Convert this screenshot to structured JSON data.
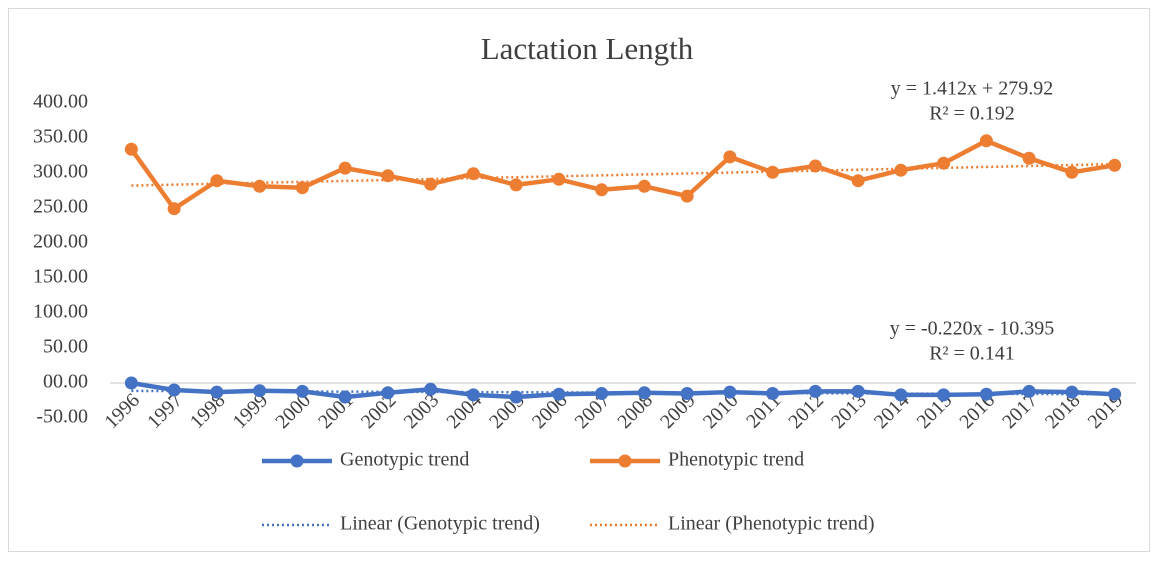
{
  "chart_data": {
    "type": "line",
    "title": "Lactation Length",
    "categories": [
      "1996",
      "1997",
      "1998",
      "1999",
      "2000",
      "2001",
      "2002",
      "2003",
      "2004",
      "2005",
      "2006",
      "2007",
      "2008",
      "2009",
      "2010",
      "2011",
      "2012",
      "2013",
      "2014",
      "2015",
      "2016",
      "2017",
      "2018",
      "2019"
    ],
    "ylim": [
      -50,
      400
    ],
    "yticks": [
      {
        "value": -50,
        "label": "-50.00"
      },
      {
        "value": 0,
        "label": "00.00"
      },
      {
        "value": 50,
        "label": "50.00"
      },
      {
        "value": 100,
        "label": "100.00"
      },
      {
        "value": 150,
        "label": "150.00"
      },
      {
        "value": 200,
        "label": "200.00"
      },
      {
        "value": 250,
        "label": "250.00"
      },
      {
        "value": 300,
        "label": "300.00"
      },
      {
        "value": 350,
        "label": "350.00"
      },
      {
        "value": 400,
        "label": "400.00"
      }
    ],
    "grid": false,
    "series": [
      {
        "name": "Genotypic trend",
        "color": "#4472c4",
        "values": [
          0,
          -10,
          -13,
          -11,
          -12,
          -20,
          -14,
          -9,
          -17,
          -20,
          -16,
          -15,
          -14,
          -15,
          -13,
          -15,
          -12,
          -12,
          -17,
          -17,
          -16,
          -12,
          -13,
          -16
        ],
        "trendline": {
          "name": "Linear (Genotypic trend)",
          "equation": "y = -0.220x - 10.395",
          "r_squared": "R² = 0.141"
        }
      },
      {
        "name": "Phenotypic trend",
        "color": "#ed7d31",
        "values": [
          334,
          249,
          289,
          281,
          279,
          307,
          296,
          284,
          299,
          283,
          291,
          276,
          281,
          267,
          323,
          301,
          310,
          289,
          304,
          314,
          346,
          321,
          301,
          311
        ],
        "trendline": {
          "name": "Linear (Phenotypic trend)",
          "equation": "y = 1.412x + 279.92",
          "r_squared": "R² = 0.192"
        }
      }
    ]
  }
}
